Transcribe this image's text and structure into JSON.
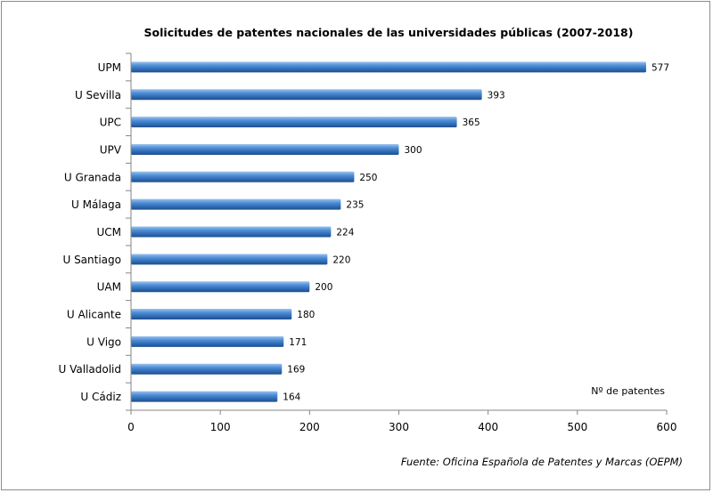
{
  "chart_data": {
    "type": "bar",
    "orientation": "horizontal",
    "title": "Solicitudes  de patentes nacionales  de las universidades  públicas  (2007-2018)",
    "categories": [
      "UPM",
      "U Sevilla",
      "UPC",
      "UPV",
      "U Granada",
      "U Málaga",
      "UCM",
      "U Santiago",
      "UAM",
      "U Alicante",
      "U Vigo",
      "U Valladolid",
      "U Cádiz"
    ],
    "values": [
      577,
      393,
      365,
      300,
      250,
      235,
      224,
      220,
      200,
      180,
      171,
      169,
      164
    ],
    "xlabel": "Nº de patentes",
    "ylabel": "",
    "xlim": [
      0,
      600
    ],
    "xticks": [
      0,
      100,
      200,
      300,
      400,
      500,
      600
    ],
    "grid": false,
    "legend": "none",
    "bar_color": "#3e7cc4",
    "source": "Fuente: Oficina Española de Patentes y Marcas (OEPM)"
  }
}
